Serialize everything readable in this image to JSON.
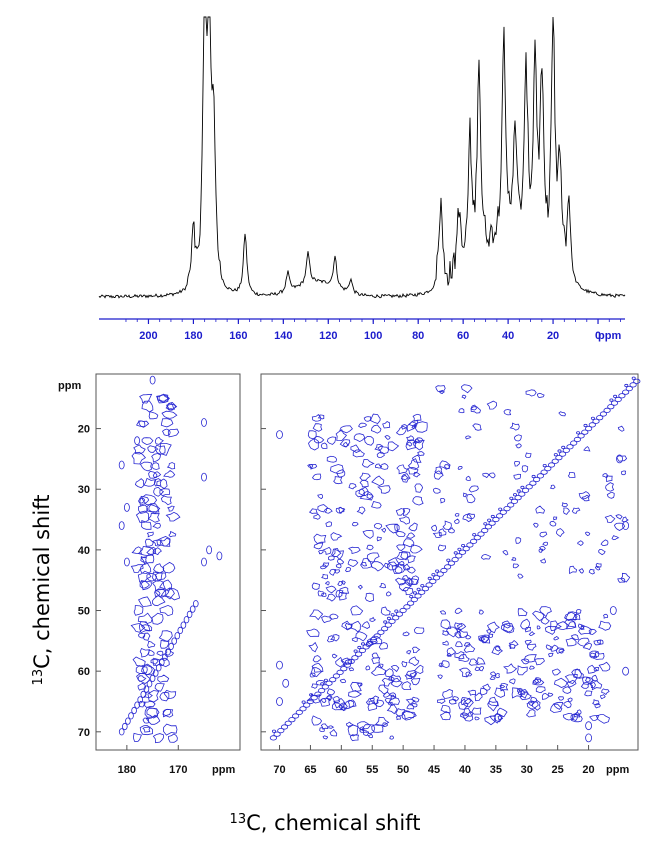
{
  "chart_data": [
    {
      "type": "line",
      "panel": "1D 13C spectrum",
      "xlabel_unit": "ppm",
      "xlim": [
        222,
        -12
      ],
      "x_ticks": [
        200,
        180,
        160,
        140,
        120,
        100,
        80,
        60,
        40,
        20,
        0
      ],
      "axis_color": "#1c1ccc",
      "trace_color": "#000000",
      "peaks": [
        {
          "x": 175,
          "y": 1.0
        },
        {
          "x": 173,
          "y": 0.95
        },
        {
          "x": 171,
          "y": 0.55
        },
        {
          "x": 180,
          "y": 0.2
        },
        {
          "x": 157,
          "y": 0.22
        },
        {
          "x": 138,
          "y": 0.07
        },
        {
          "x": 129,
          "y": 0.11
        },
        {
          "x": 117,
          "y": 0.11
        },
        {
          "x": 110,
          "y": 0.05
        },
        {
          "x": 70,
          "y": 0.3
        },
        {
          "x": 62,
          "y": 0.23
        },
        {
          "x": 57,
          "y": 0.44
        },
        {
          "x": 53,
          "y": 0.7
        },
        {
          "x": 42,
          "y": 0.72
        },
        {
          "x": 37,
          "y": 0.4
        },
        {
          "x": 32,
          "y": 0.6
        },
        {
          "x": 28,
          "y": 0.68
        },
        {
          "x": 25,
          "y": 0.62
        },
        {
          "x": 20,
          "y": 0.9
        },
        {
          "x": 17,
          "y": 0.38
        },
        {
          "x": 13,
          "y": 0.28
        }
      ]
    },
    {
      "type": "contour",
      "panel": "2D 13C-13C correlation, carbonyl region",
      "x_unit": "ppm",
      "y_unit": "ppm",
      "xlim": [
        186,
        158
      ],
      "ylim": [
        11,
        73
      ],
      "x_ticks": [
        180,
        170
      ],
      "y_ticks": [
        20,
        30,
        40,
        50,
        60,
        70
      ],
      "contour_color": "#2828d2"
    },
    {
      "type": "contour",
      "panel": "2D 13C-13C correlation, aliphatic region",
      "x_unit": "ppm",
      "y_unit": "ppm",
      "xlim": [
        73,
        12
      ],
      "ylim": [
        11,
        73
      ],
      "x_ticks": [
        70,
        65,
        60,
        55,
        50,
        45,
        40,
        35,
        30,
        25,
        20
      ],
      "y_ticks": [
        20,
        30,
        40,
        50,
        60,
        70
      ],
      "contour_color": "#2828d2"
    }
  ],
  "labels": {
    "unit_top": "ppm",
    "unit_left_y": "ppm",
    "unit_left_x": "ppm",
    "unit_right_x": "ppm",
    "axis_title_text": "C, chemical shift",
    "axis_title_sup": "13"
  }
}
